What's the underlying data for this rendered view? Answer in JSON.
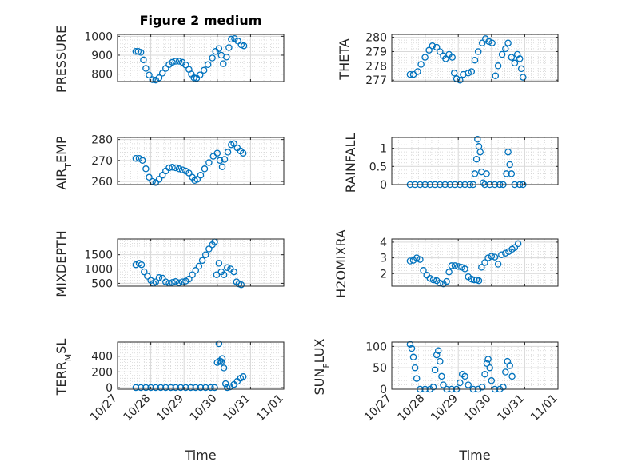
{
  "title": "Figure 2 medium",
  "xlabel": "Time",
  "x_ticks": [
    "10/27",
    "10/28",
    "10/29",
    "10/30",
    "10/31",
    "11/01"
  ],
  "colors": {
    "marker": "#0072BD",
    "axis": "#262626"
  },
  "ylabels": {
    "pressure": {
      "main": "PRESSURE"
    },
    "theta": {
      "main": "THETA"
    },
    "air_temp": {
      "pre": "AIR",
      "sub": "T",
      "post": "EMP"
    },
    "rainfall": {
      "main": "RAINFALL"
    },
    "mixdepth": {
      "main": "MIXDEPTH"
    },
    "h2omixra": {
      "main": "H2OMIXRA"
    },
    "terr_msl": {
      "pre": "TERR",
      "sub": "M",
      "post": "SL"
    },
    "sun_flux": {
      "pre": "SUN",
      "sub": "F",
      "post": "LUX"
    }
  },
  "chart_data": [
    {
      "type": "scatter",
      "id": "pressure",
      "title": "Figure 2 medium",
      "ylabel": "PRESSURE",
      "xlim": [
        0,
        5
      ],
      "ylim": [
        760,
        1010
      ],
      "yticks": [
        800,
        900,
        1000
      ],
      "grid": true,
      "minor_grid": true,
      "points": [
        [
          0.55,
          920
        ],
        [
          0.62,
          920
        ],
        [
          0.7,
          915
        ],
        [
          0.78,
          875
        ],
        [
          0.85,
          830
        ],
        [
          0.95,
          795
        ],
        [
          1.05,
          770
        ],
        [
          1.15,
          768
        ],
        [
          1.25,
          780
        ],
        [
          1.35,
          805
        ],
        [
          1.45,
          830
        ],
        [
          1.55,
          850
        ],
        [
          1.65,
          862
        ],
        [
          1.75,
          868
        ],
        [
          1.85,
          868
        ],
        [
          1.95,
          862
        ],
        [
          2.05,
          848
        ],
        [
          2.15,
          825
        ],
        [
          2.22,
          800
        ],
        [
          2.3,
          780
        ],
        [
          2.38,
          778
        ],
        [
          2.48,
          795
        ],
        [
          2.6,
          820
        ],
        [
          2.72,
          850
        ],
        [
          2.85,
          885
        ],
        [
          2.95,
          920
        ],
        [
          3.05,
          935
        ],
        [
          3.12,
          900
        ],
        [
          3.18,
          855
        ],
        [
          3.28,
          890
        ],
        [
          3.35,
          940
        ],
        [
          3.42,
          985
        ],
        [
          3.52,
          988
        ],
        [
          3.62,
          975
        ],
        [
          3.72,
          955
        ],
        [
          3.8,
          950
        ]
      ]
    },
    {
      "type": "scatter",
      "id": "theta",
      "ylabel": "THETA",
      "xlim": [
        0,
        5
      ],
      "ylim": [
        276.9,
        280.2
      ],
      "yticks": [
        277,
        278,
        279,
        280
      ],
      "grid": true,
      "minor_grid": true,
      "points": [
        [
          0.55,
          277.4
        ],
        [
          0.65,
          277.4
        ],
        [
          0.78,
          277.6
        ],
        [
          0.88,
          278.1
        ],
        [
          1.0,
          278.6
        ],
        [
          1.12,
          279.1
        ],
        [
          1.22,
          279.4
        ],
        [
          1.35,
          279.3
        ],
        [
          1.45,
          279.0
        ],
        [
          1.55,
          278.7
        ],
        [
          1.62,
          278.5
        ],
        [
          1.72,
          278.8
        ],
        [
          1.82,
          278.6
        ],
        [
          1.88,
          277.5
        ],
        [
          1.95,
          277.1
        ],
        [
          2.05,
          277.0
        ],
        [
          2.15,
          277.4
        ],
        [
          2.3,
          277.5
        ],
        [
          2.4,
          277.6
        ],
        [
          2.5,
          278.4
        ],
        [
          2.6,
          279.0
        ],
        [
          2.72,
          279.6
        ],
        [
          2.82,
          279.9
        ],
        [
          2.92,
          279.7
        ],
        [
          3.02,
          279.6
        ],
        [
          3.12,
          277.3
        ],
        [
          3.2,
          278.0
        ],
        [
          3.32,
          278.8
        ],
        [
          3.42,
          279.2
        ],
        [
          3.5,
          279.6
        ],
        [
          3.6,
          278.6
        ],
        [
          3.7,
          278.2
        ],
        [
          3.78,
          278.8
        ],
        [
          3.85,
          278.5
        ],
        [
          3.9,
          277.8
        ],
        [
          3.95,
          277.2
        ]
      ]
    },
    {
      "type": "scatter",
      "id": "air_temp",
      "ylabel": "AIR_TEMP",
      "xlim": [
        0,
        5
      ],
      "ylim": [
        258.5,
        281
      ],
      "yticks": [
        260,
        270,
        280
      ],
      "grid": true,
      "minor_grid": true,
      "points": [
        [
          0.55,
          271
        ],
        [
          0.65,
          271
        ],
        [
          0.75,
          270
        ],
        [
          0.85,
          266
        ],
        [
          0.95,
          262
        ],
        [
          1.05,
          260
        ],
        [
          1.15,
          259.5
        ],
        [
          1.25,
          261
        ],
        [
          1.35,
          263
        ],
        [
          1.45,
          265
        ],
        [
          1.55,
          266.5
        ],
        [
          1.65,
          266.8
        ],
        [
          1.75,
          266.5
        ],
        [
          1.85,
          266
        ],
        [
          1.95,
          265.5
        ],
        [
          2.05,
          265
        ],
        [
          2.15,
          264
        ],
        [
          2.25,
          262
        ],
        [
          2.32,
          260.5
        ],
        [
          2.4,
          261
        ],
        [
          2.5,
          263
        ],
        [
          2.62,
          266
        ],
        [
          2.75,
          269
        ],
        [
          2.88,
          272
        ],
        [
          3.0,
          273.5
        ],
        [
          3.08,
          270
        ],
        [
          3.15,
          267
        ],
        [
          3.22,
          270.5
        ],
        [
          3.32,
          274
        ],
        [
          3.42,
          277.5
        ],
        [
          3.5,
          278
        ],
        [
          3.6,
          276
        ],
        [
          3.7,
          274.5
        ],
        [
          3.78,
          273.5
        ]
      ]
    },
    {
      "type": "scatter",
      "id": "rainfall",
      "ylabel": "RAINFALL",
      "xlim": [
        0,
        5
      ],
      "ylim": [
        0,
        1.3
      ],
      "yticks": [
        0,
        0.5,
        1
      ],
      "grid": true,
      "minor_grid": true,
      "points": [
        [
          0.55,
          0
        ],
        [
          0.7,
          0
        ],
        [
          0.85,
          0
        ],
        [
          1.0,
          0
        ],
        [
          1.15,
          0
        ],
        [
          1.3,
          0
        ],
        [
          1.45,
          0
        ],
        [
          1.6,
          0
        ],
        [
          1.75,
          0
        ],
        [
          1.9,
          0
        ],
        [
          2.05,
          0
        ],
        [
          2.2,
          0
        ],
        [
          2.35,
          0
        ],
        [
          2.45,
          0
        ],
        [
          2.5,
          0.3
        ],
        [
          2.55,
          0.7
        ],
        [
          2.58,
          1.25
        ],
        [
          2.62,
          1.05
        ],
        [
          2.66,
          0.9
        ],
        [
          2.7,
          0.35
        ],
        [
          2.75,
          0.05
        ],
        [
          2.8,
          0
        ],
        [
          2.85,
          0.3
        ],
        [
          2.95,
          0
        ],
        [
          3.1,
          0
        ],
        [
          3.25,
          0
        ],
        [
          3.35,
          0
        ],
        [
          3.45,
          0.3
        ],
        [
          3.5,
          0.9
        ],
        [
          3.55,
          0.55
        ],
        [
          3.6,
          0.3
        ],
        [
          3.7,
          0
        ],
        [
          3.85,
          0
        ],
        [
          3.95,
          0
        ]
      ]
    },
    {
      "type": "scatter",
      "id": "mixdepth",
      "ylabel": "MIXDEPTH",
      "xlim": [
        0,
        5
      ],
      "ylim": [
        400,
        2050
      ],
      "yticks": [
        500,
        1000,
        1500
      ],
      "grid": true,
      "minor_grid": true,
      "points": [
        [
          0.55,
          1150
        ],
        [
          0.65,
          1200
        ],
        [
          0.72,
          1150
        ],
        [
          0.8,
          900
        ],
        [
          0.9,
          750
        ],
        [
          1.0,
          600
        ],
        [
          1.08,
          500
        ],
        [
          1.15,
          550
        ],
        [
          1.25,
          700
        ],
        [
          1.35,
          680
        ],
        [
          1.45,
          550
        ],
        [
          1.55,
          500
        ],
        [
          1.65,
          530
        ],
        [
          1.75,
          560
        ],
        [
          1.85,
          520
        ],
        [
          1.95,
          550
        ],
        [
          2.05,
          580
        ],
        [
          2.15,
          650
        ],
        [
          2.25,
          800
        ],
        [
          2.35,
          950
        ],
        [
          2.45,
          1100
        ],
        [
          2.55,
          1300
        ],
        [
          2.65,
          1500
        ],
        [
          2.75,
          1700
        ],
        [
          2.85,
          1850
        ],
        [
          2.92,
          1950
        ],
        [
          2.98,
          800
        ],
        [
          3.05,
          1200
        ],
        [
          3.12,
          900
        ],
        [
          3.2,
          800
        ],
        [
          3.3,
          1050
        ],
        [
          3.4,
          1000
        ],
        [
          3.5,
          900
        ],
        [
          3.58,
          550
        ],
        [
          3.65,
          480
        ],
        [
          3.72,
          450
        ]
      ]
    },
    {
      "type": "scatter",
      "id": "h2omixra",
      "ylabel": "H2OMIXRA",
      "xlim": [
        0,
        5
      ],
      "ylim": [
        1.2,
        4.2
      ],
      "yticks": [
        2,
        3,
        4
      ],
      "grid": true,
      "minor_grid": true,
      "points": [
        [
          0.55,
          2.8
        ],
        [
          0.65,
          2.85
        ],
        [
          0.75,
          3.0
        ],
        [
          0.85,
          2.9
        ],
        [
          0.95,
          2.2
        ],
        [
          1.05,
          1.9
        ],
        [
          1.15,
          1.7
        ],
        [
          1.25,
          1.6
        ],
        [
          1.35,
          1.55
        ],
        [
          1.45,
          1.4
        ],
        [
          1.55,
          1.35
        ],
        [
          1.65,
          1.5
        ],
        [
          1.72,
          2.1
        ],
        [
          1.8,
          2.5
        ],
        [
          1.9,
          2.5
        ],
        [
          2.0,
          2.45
        ],
        [
          2.1,
          2.4
        ],
        [
          2.2,
          2.3
        ],
        [
          2.3,
          1.8
        ],
        [
          2.4,
          1.65
        ],
        [
          2.48,
          1.6
        ],
        [
          2.55,
          1.6
        ],
        [
          2.62,
          1.55
        ],
        [
          2.7,
          2.4
        ],
        [
          2.8,
          2.7
        ],
        [
          2.9,
          3.0
        ],
        [
          3.0,
          3.1
        ],
        [
          3.1,
          3.05
        ],
        [
          3.2,
          2.6
        ],
        [
          3.3,
          3.2
        ],
        [
          3.42,
          3.3
        ],
        [
          3.52,
          3.4
        ],
        [
          3.62,
          3.55
        ],
        [
          3.7,
          3.65
        ],
        [
          3.8,
          3.9
        ]
      ]
    },
    {
      "type": "scatter",
      "id": "terr_msl",
      "ylabel": "TERR_MSL",
      "xlim": [
        0,
        5
      ],
      "ylim": [
        -20,
        580
      ],
      "yticks": [
        0,
        200,
        400
      ],
      "grid": true,
      "minor_grid": true,
      "points": [
        [
          0.55,
          0
        ],
        [
          0.7,
          0
        ],
        [
          0.85,
          0
        ],
        [
          1.0,
          0
        ],
        [
          1.15,
          0
        ],
        [
          1.3,
          0
        ],
        [
          1.45,
          0
        ],
        [
          1.6,
          0
        ],
        [
          1.75,
          0
        ],
        [
          1.9,
          0
        ],
        [
          2.05,
          0
        ],
        [
          2.2,
          0
        ],
        [
          2.35,
          0
        ],
        [
          2.5,
          0
        ],
        [
          2.65,
          0
        ],
        [
          2.8,
          0
        ],
        [
          2.92,
          0
        ],
        [
          3.0,
          320
        ],
        [
          3.05,
          560
        ],
        [
          3.08,
          340
        ],
        [
          3.12,
          330
        ],
        [
          3.15,
          370
        ],
        [
          3.2,
          250
        ],
        [
          3.25,
          50
        ],
        [
          3.3,
          0
        ],
        [
          3.38,
          10
        ],
        [
          3.5,
          40
        ],
        [
          3.6,
          80
        ],
        [
          3.7,
          120
        ],
        [
          3.78,
          140
        ]
      ]
    },
    {
      "type": "scatter",
      "id": "sun_flux",
      "ylabel": "SUN_FLUX",
      "xlim": [
        0,
        5
      ],
      "ylim": [
        0,
        110
      ],
      "yticks": [
        0,
        50,
        100
      ],
      "grid": true,
      "minor_grid": true,
      "points": [
        [
          0.55,
          105
        ],
        [
          0.6,
          95
        ],
        [
          0.65,
          75
        ],
        [
          0.7,
          50
        ],
        [
          0.75,
          25
        ],
        [
          0.85,
          0
        ],
        [
          1.0,
          0
        ],
        [
          1.15,
          0
        ],
        [
          1.25,
          5
        ],
        [
          1.3,
          45
        ],
        [
          1.35,
          80
        ],
        [
          1.4,
          90
        ],
        [
          1.45,
          65
        ],
        [
          1.5,
          30
        ],
        [
          1.55,
          10
        ],
        [
          1.65,
          0
        ],
        [
          1.8,
          0
        ],
        [
          1.95,
          0
        ],
        [
          2.05,
          15
        ],
        [
          2.12,
          35
        ],
        [
          2.2,
          30
        ],
        [
          2.3,
          10
        ],
        [
          2.45,
          0
        ],
        [
          2.6,
          0
        ],
        [
          2.72,
          5
        ],
        [
          2.8,
          35
        ],
        [
          2.86,
          60
        ],
        [
          2.9,
          70
        ],
        [
          2.95,
          50
        ],
        [
          3.0,
          20
        ],
        [
          3.1,
          0
        ],
        [
          3.25,
          0
        ],
        [
          3.35,
          5
        ],
        [
          3.42,
          40
        ],
        [
          3.48,
          65
        ],
        [
          3.55,
          55
        ],
        [
          3.62,
          30
        ]
      ]
    }
  ]
}
